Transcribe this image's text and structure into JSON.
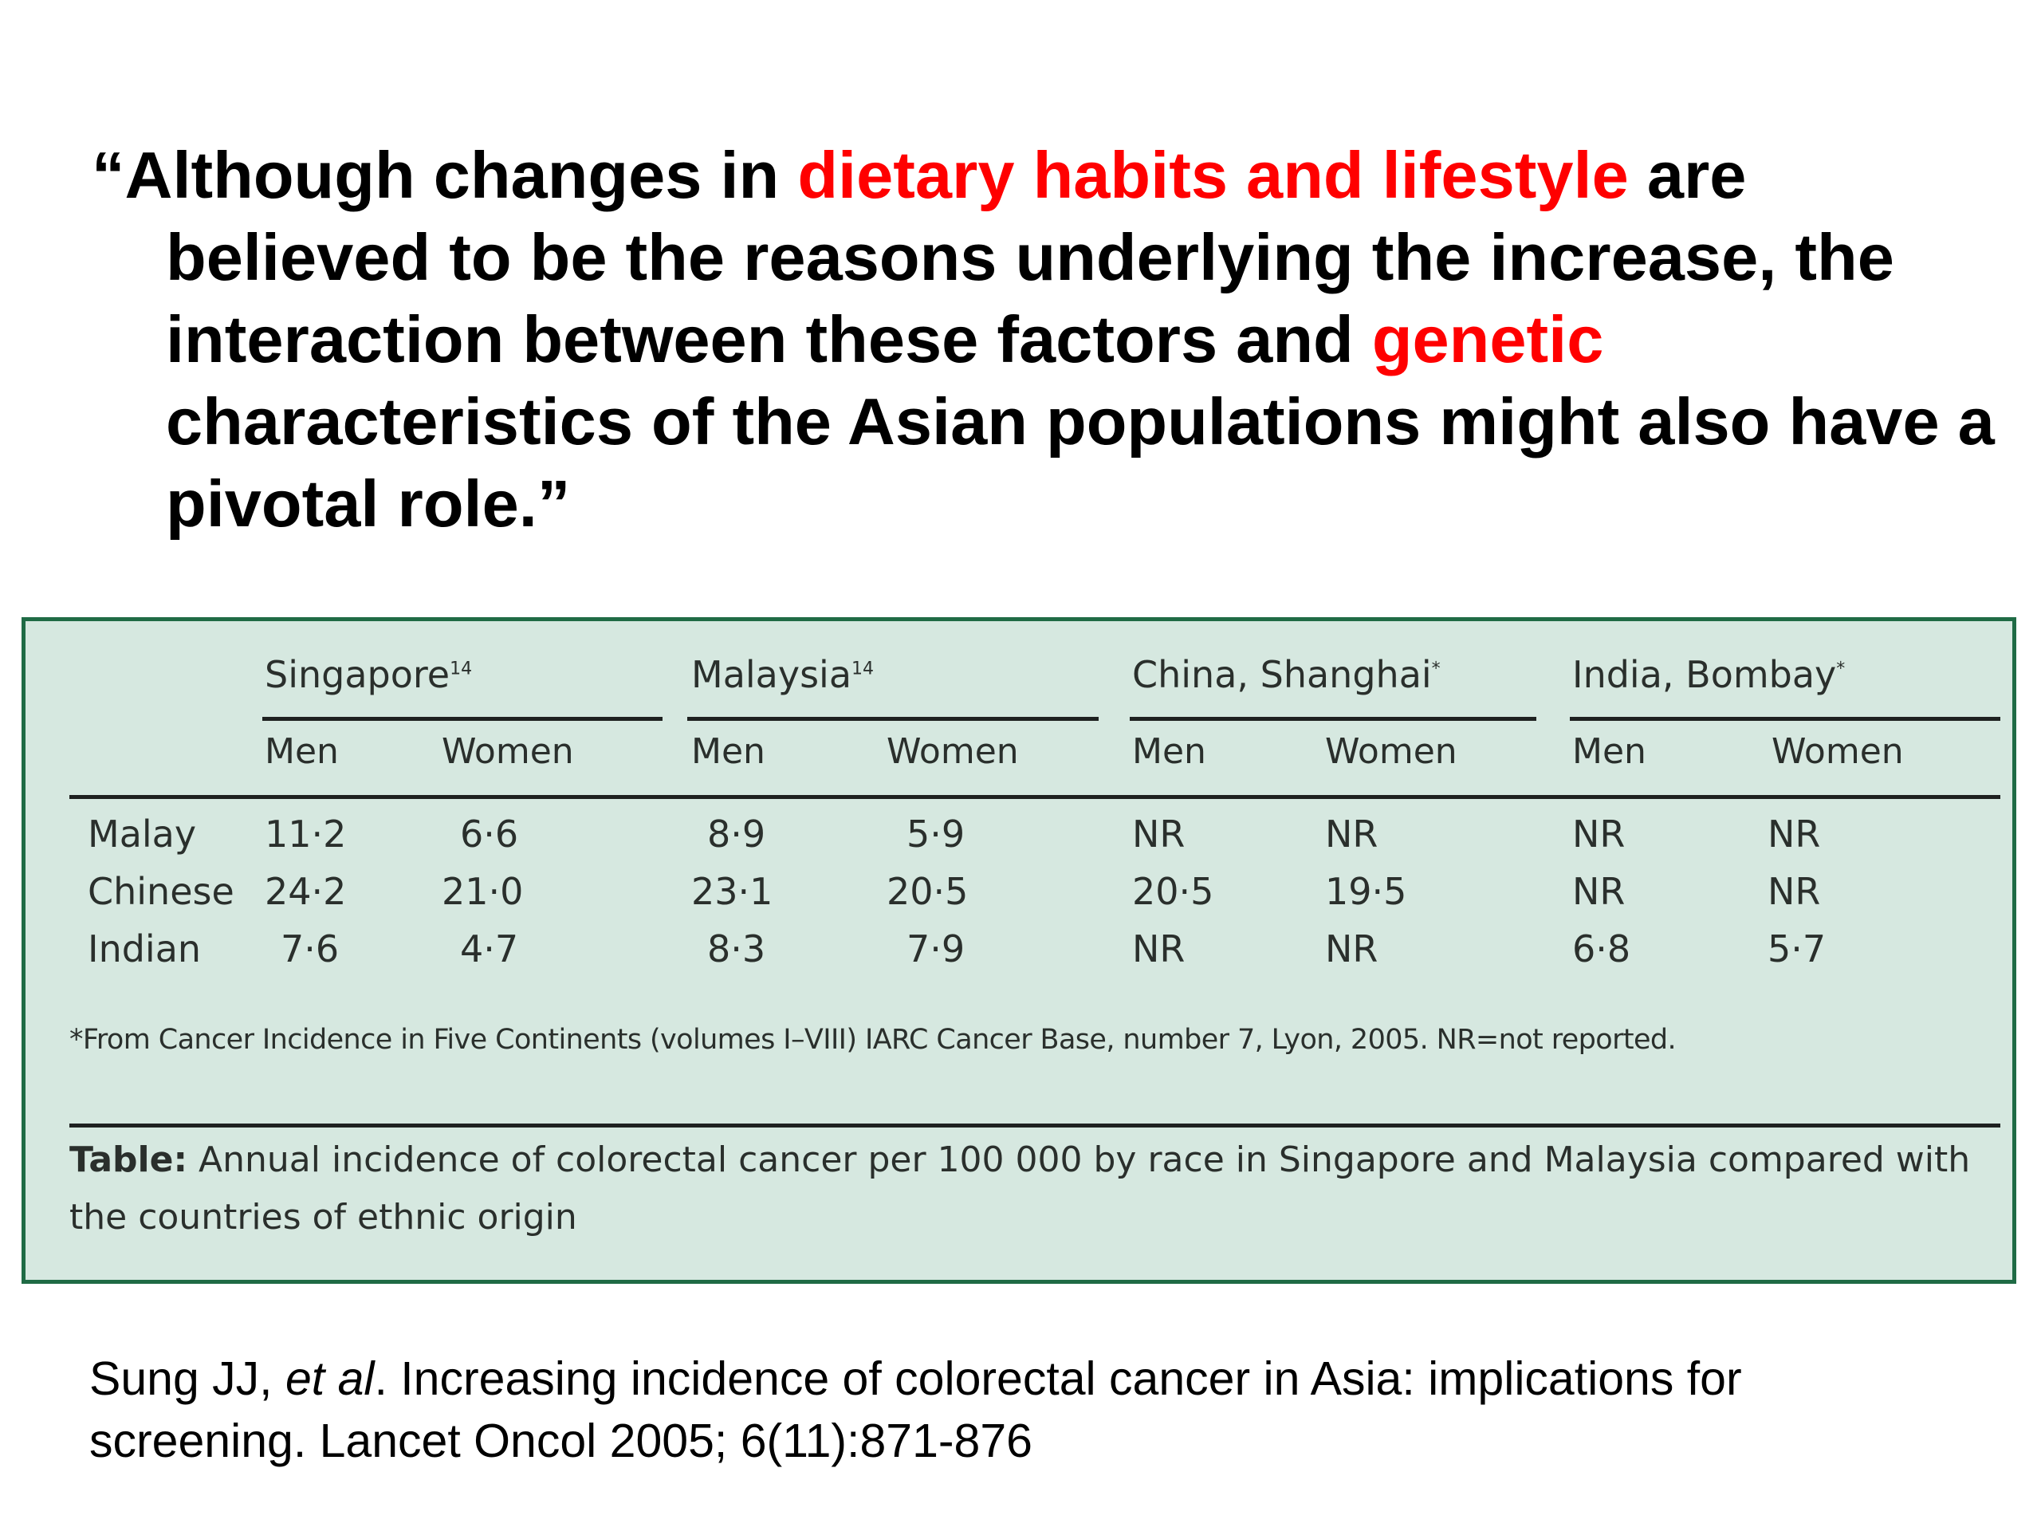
{
  "quote": {
    "part1": "“Although changes in ",
    "highlight1": "dietary habits and lifestyle",
    "part2": " are believed to be the reasons underlying the increase, the interaction between these factors and ",
    "highlight2": "genetic",
    "part3": " characteristics of the Asian populations might also have a pivotal role.”",
    "highlight_color": "#ff0000"
  },
  "table": {
    "countries": [
      {
        "name": "Singapore",
        "ref": "14"
      },
      {
        "name": "Malaysia",
        "ref": "14"
      },
      {
        "name": "China, Shanghai",
        "ref": "*"
      },
      {
        "name": "India, Bombay",
        "ref": "*"
      }
    ],
    "sex_headers": [
      "Men",
      "Women",
      "Men",
      "Women",
      "Men",
      "Women",
      "Men",
      "Women"
    ],
    "rows": [
      {
        "label": "Malay",
        "values": [
          "11·2",
          "6·6",
          "8·9",
          "5·9",
          "NR",
          "NR",
          "NR",
          "NR"
        ]
      },
      {
        "label": "Chinese",
        "values": [
          "24·2",
          "21·0",
          "23·1",
          "20·5",
          "20·5",
          "19·5",
          "NR",
          "NR"
        ]
      },
      {
        "label": "Indian",
        "values": [
          "7·6",
          "4·7",
          "8·3",
          "7·9",
          "NR",
          "NR",
          "6·8",
          "5·7"
        ]
      }
    ],
    "footnote": "*From Cancer Incidence in Five Continents (volumes I–VIII) IARC Cancer Base, number 7, Lyon, 2005. NR=not reported.",
    "caption_label": "Table:",
    "caption_text": " Annual incidence of colorectal cancer per 100 000 by race in Singapore and Malaysia compared with the countries of ethnic origin",
    "background_color": "#d6e8e0",
    "border_color": "#1f6b45"
  },
  "citation": {
    "authors": "Sung JJ, ",
    "etal": "et al",
    "rest": ". Increasing incidence of colorectal cancer in Asia: implications for screening. Lancet Oncol 2005; 6(11):871-876"
  }
}
